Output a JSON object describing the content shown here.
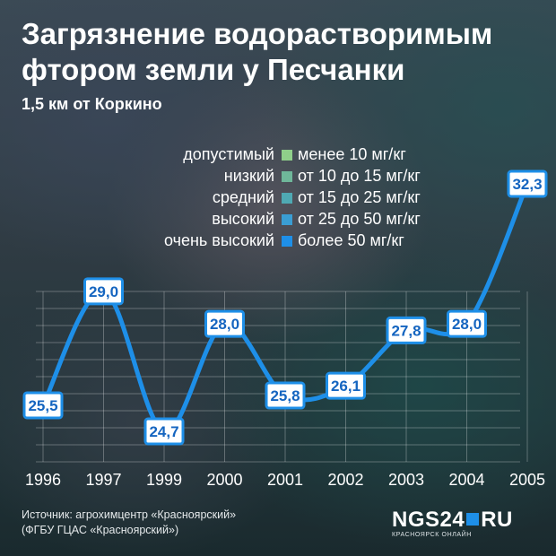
{
  "title": "Загрязнение водорастворимым фтором земли у Песчанки",
  "subtitle": "1,5 км от Коркино",
  "legend": [
    {
      "name": "допустимый",
      "range": "менее 10 мг/кг",
      "color": "#8fcf8a"
    },
    {
      "name": "низкий",
      "range": "от 10 до 15 мг/кг",
      "color": "#6fb79a"
    },
    {
      "name": "средний",
      "range": "от 15 до 25 мг/кг",
      "color": "#4fa9b3"
    },
    {
      "name": "высокий",
      "range": "от 25 до 50 мг/кг",
      "color": "#3a9ed4"
    },
    {
      "name": "очень высокий",
      "range": "более 50 мг/кг",
      "color": "#1e8fe8"
    }
  ],
  "source": {
    "line1": "Источник: агрохимцентр «Красноярский»",
    "line2": "(ФГБУ ГЦАС «Красноярский»)"
  },
  "logo": {
    "text": "NGS24",
    "suffix": "RU",
    "sub": "КРАСНОЯРСК ОНЛАЙН"
  },
  "colors": {
    "line": "#1e8fe8",
    "label_border": "#1e8fe8",
    "label_text": "#1565c0"
  },
  "chart_data": {
    "type": "line",
    "categories": [
      "1996",
      "1997",
      "1999",
      "2000",
      "2001",
      "2002",
      "2003",
      "2004",
      "2005"
    ],
    "values": [
      25.5,
      29.0,
      24.7,
      28.0,
      25.8,
      26.1,
      27.8,
      28.0,
      32.3
    ],
    "labels": [
      "25,5",
      "29,0",
      "24,7",
      "28,0",
      "25,8",
      "26,1",
      "27,8",
      "28,0",
      "32,3"
    ],
    "series": [
      {
        "values": [
          25.5,
          29.0,
          24.7,
          28.0,
          25.8,
          26.1,
          27.8,
          28.0,
          32.3
        ]
      }
    ],
    "grid": true,
    "legend_placement": "top"
  }
}
